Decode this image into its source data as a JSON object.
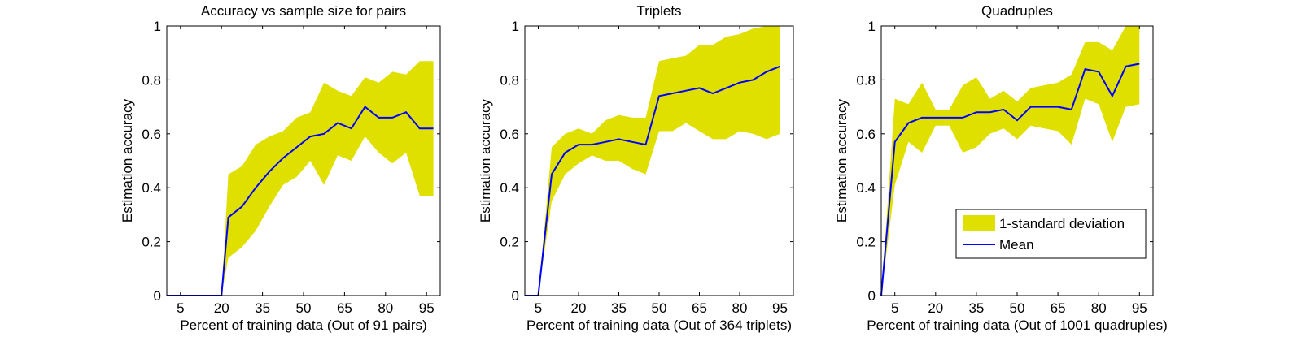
{
  "chart_data": [
    {
      "type": "area",
      "title": "Accuracy vs sample size for pairs",
      "xlabel": "Percent of training data (Out of 91 pairs)",
      "ylabel": "Estimation accuracy",
      "xlim": [
        0,
        100
      ],
      "ylim": [
        0,
        1
      ],
      "xticks": [
        5,
        20,
        35,
        50,
        65,
        80,
        95
      ],
      "yticks": [
        0,
        0.2,
        0.4,
        0.6,
        0.8,
        1
      ],
      "grid": false,
      "x": [
        0,
        5,
        10,
        15,
        20,
        22.5,
        27.5,
        32.5,
        37.5,
        42.5,
        47.5,
        52.5,
        57.5,
        62.5,
        67.5,
        72.5,
        77.5,
        82.5,
        87.5,
        92.5,
        97.5
      ],
      "series": [
        {
          "name": "Mean",
          "color": "#0000ff",
          "values": [
            0,
            0,
            0,
            0,
            0,
            0.29,
            0.33,
            0.4,
            0.46,
            0.51,
            0.55,
            0.59,
            0.6,
            0.64,
            0.62,
            0.7,
            0.66,
            0.66,
            0.68,
            0.62,
            0.62
          ]
        },
        {
          "name": "upper",
          "color": "#e0e000",
          "values": [
            0,
            0,
            0,
            0,
            0,
            0.45,
            0.48,
            0.56,
            0.59,
            0.61,
            0.66,
            0.68,
            0.79,
            0.76,
            0.74,
            0.81,
            0.79,
            0.83,
            0.82,
            0.87,
            0.87
          ]
        },
        {
          "name": "lower",
          "color": "#e0e000",
          "values": [
            0,
            0,
            0,
            0,
            0,
            0.14,
            0.18,
            0.24,
            0.33,
            0.41,
            0.44,
            0.5,
            0.41,
            0.52,
            0.5,
            0.59,
            0.53,
            0.49,
            0.53,
            0.37,
            0.37
          ]
        }
      ]
    },
    {
      "type": "area",
      "title": "Triplets",
      "xlabel": "Percent of training data (Out of 364 triplets)",
      "ylabel": "Estimation accuracy",
      "xlim": [
        0,
        100
      ],
      "ylim": [
        0,
        1
      ],
      "xticks": [
        5,
        20,
        35,
        50,
        65,
        80,
        95
      ],
      "yticks": [
        0,
        0.2,
        0.4,
        0.6,
        0.8,
        1
      ],
      "grid": false,
      "x": [
        0,
        5,
        10,
        15,
        20,
        25,
        30,
        35,
        40,
        45,
        50,
        55,
        60,
        65,
        70,
        75,
        80,
        85,
        90,
        95
      ],
      "series": [
        {
          "name": "Mean",
          "color": "#0000ff",
          "values": [
            0,
            0,
            0.45,
            0.53,
            0.56,
            0.56,
            0.57,
            0.58,
            0.57,
            0.56,
            0.74,
            0.75,
            0.76,
            0.77,
            0.75,
            0.77,
            0.79,
            0.8,
            0.83,
            0.85
          ]
        },
        {
          "name": "upper",
          "color": "#e0e000",
          "values": [
            0,
            0,
            0.55,
            0.6,
            0.62,
            0.6,
            0.65,
            0.67,
            0.66,
            0.66,
            0.87,
            0.88,
            0.89,
            0.93,
            0.93,
            0.96,
            0.97,
            0.99,
            1.0,
            1.0
          ]
        },
        {
          "name": "lower",
          "color": "#e0e000",
          "values": [
            0,
            0,
            0.35,
            0.45,
            0.49,
            0.52,
            0.5,
            0.5,
            0.47,
            0.45,
            0.61,
            0.61,
            0.64,
            0.61,
            0.58,
            0.58,
            0.61,
            0.6,
            0.58,
            0.6
          ]
        }
      ]
    },
    {
      "type": "area",
      "title": "Quadruples",
      "xlabel": "Percent of training data (Out of 1001 quadruples)",
      "ylabel": "Estimation accuracy",
      "xlim": [
        0,
        100
      ],
      "ylim": [
        0,
        1
      ],
      "xticks": [
        5,
        20,
        35,
        50,
        65,
        80,
        95
      ],
      "yticks": [
        0,
        0.2,
        0.4,
        0.6,
        0.8,
        1
      ],
      "grid": false,
      "legend": {
        "position": "bottom-right",
        "entries": [
          "1-standard deviation",
          "Mean"
        ]
      },
      "x": [
        0,
        5,
        10,
        15,
        20,
        25,
        30,
        35,
        40,
        45,
        50,
        55,
        60,
        65,
        70,
        75,
        80,
        85,
        90,
        95
      ],
      "series": [
        {
          "name": "Mean",
          "color": "#0000ff",
          "values": [
            0,
            0.57,
            0.64,
            0.66,
            0.66,
            0.66,
            0.66,
            0.68,
            0.68,
            0.69,
            0.65,
            0.7,
            0.7,
            0.7,
            0.69,
            0.84,
            0.83,
            0.74,
            0.85,
            0.86
          ]
        },
        {
          "name": "upper",
          "color": "#e0e000",
          "values": [
            0,
            0.73,
            0.71,
            0.79,
            0.69,
            0.69,
            0.78,
            0.81,
            0.73,
            0.76,
            0.72,
            0.77,
            0.78,
            0.79,
            0.82,
            0.94,
            0.94,
            0.91,
            1.0,
            1.0
          ]
        },
        {
          "name": "lower",
          "color": "#e0e000",
          "values": [
            0,
            0.41,
            0.57,
            0.53,
            0.63,
            0.63,
            0.53,
            0.55,
            0.6,
            0.62,
            0.58,
            0.63,
            0.62,
            0.61,
            0.56,
            0.73,
            0.71,
            0.57,
            0.7,
            0.71
          ]
        }
      ]
    }
  ]
}
